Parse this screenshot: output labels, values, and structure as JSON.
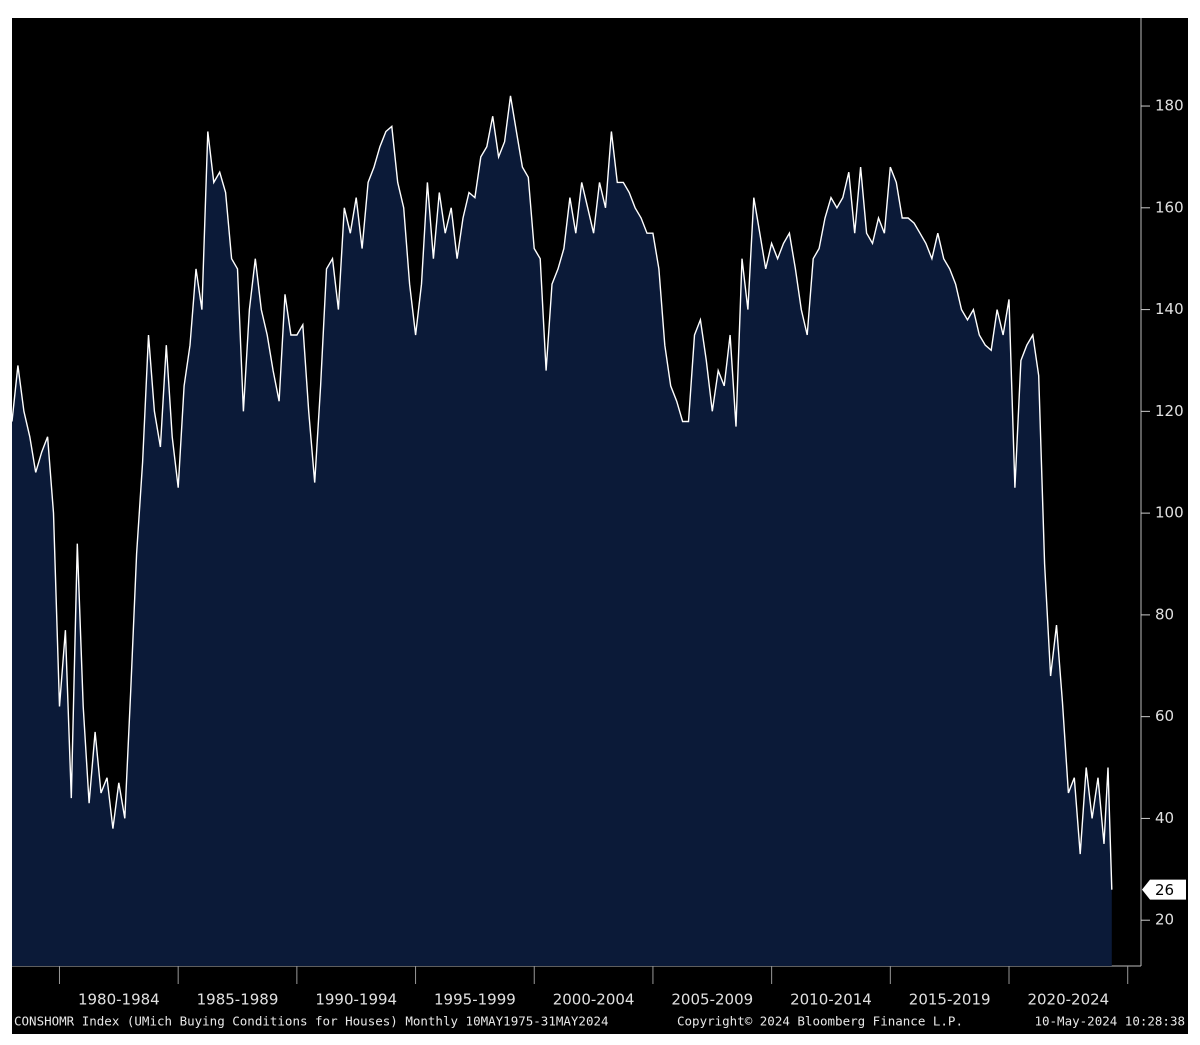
{
  "chart_data": {
    "type": "area",
    "x": [
      1978,
      1978.25,
      1978.5,
      1978.75,
      1979,
      1979.25,
      1979.5,
      1979.75,
      1980,
      1980.25,
      1980.5,
      1980.75,
      1981,
      1981.25,
      1981.5,
      1981.75,
      1982,
      1982.25,
      1982.5,
      1982.75,
      1983,
      1983.25,
      1983.5,
      1983.75,
      1984,
      1984.25,
      1984.5,
      1984.75,
      1985,
      1985.25,
      1985.5,
      1985.75,
      1986,
      1986.25,
      1986.5,
      1986.75,
      1987,
      1987.25,
      1987.5,
      1987.75,
      1988,
      1988.25,
      1988.5,
      1988.75,
      1989,
      1989.25,
      1989.5,
      1989.75,
      1990,
      1990.25,
      1990.5,
      1990.75,
      1991,
      1991.25,
      1991.5,
      1991.75,
      1992,
      1992.25,
      1992.5,
      1992.75,
      1993,
      1993.25,
      1993.5,
      1993.75,
      1994,
      1994.25,
      1994.5,
      1994.75,
      1995,
      1995.25,
      1995.5,
      1995.75,
      1996,
      1996.25,
      1996.5,
      1996.75,
      1997,
      1997.25,
      1997.5,
      1997.75,
      1998,
      1998.25,
      1998.5,
      1998.75,
      1999,
      1999.25,
      1999.5,
      1999.75,
      2000,
      2000.25,
      2000.5,
      2000.75,
      2001,
      2001.25,
      2001.5,
      2001.75,
      2002,
      2002.25,
      2002.5,
      2002.75,
      2003,
      2003.25,
      2003.5,
      2003.75,
      2004,
      2004.25,
      2004.5,
      2004.75,
      2005,
      2005.25,
      2005.5,
      2005.75,
      2006,
      2006.25,
      2006.5,
      2006.75,
      2007,
      2007.25,
      2007.5,
      2007.75,
      2008,
      2008.25,
      2008.5,
      2008.75,
      2009,
      2009.25,
      2009.5,
      2009.75,
      2010,
      2010.25,
      2010.5,
      2010.75,
      2011,
      2011.25,
      2011.5,
      2011.75,
      2012,
      2012.25,
      2012.5,
      2012.75,
      2013,
      2013.25,
      2013.5,
      2013.75,
      2014,
      2014.25,
      2014.5,
      2014.75,
      2015,
      2015.25,
      2015.5,
      2015.75,
      2016,
      2016.25,
      2016.5,
      2016.75,
      2017,
      2017.25,
      2017.5,
      2017.75,
      2018,
      2018.25,
      2018.5,
      2018.75,
      2019,
      2019.25,
      2019.5,
      2019.75,
      2020,
      2020.25,
      2020.5,
      2020.75,
      2021,
      2021.25,
      2021.5,
      2021.75,
      2022,
      2022.25,
      2022.5,
      2022.75,
      2023,
      2023.25,
      2023.5,
      2023.75,
      2024,
      2024.17,
      2024.33
    ],
    "series": [
      {
        "name": "CONSHOMR Index",
        "color": "#ffffff",
        "fill": "#0b1a38",
        "values": [
          118,
          129,
          120,
          115,
          108,
          112,
          115,
          100,
          62,
          77,
          44,
          94,
          62,
          43,
          57,
          45,
          48,
          38,
          47,
          40,
          65,
          92,
          110,
          135,
          120,
          113,
          133,
          115,
          105,
          125,
          133,
          148,
          140,
          175,
          165,
          167,
          163,
          150,
          148,
          120,
          140,
          150,
          140,
          135,
          128,
          122,
          143,
          135,
          135,
          137,
          120,
          106,
          125,
          148,
          150,
          140,
          160,
          155,
          162,
          152,
          165,
          168,
          172,
          175,
          176,
          165,
          160,
          145,
          135,
          145,
          165,
          150,
          163,
          155,
          160,
          150,
          158,
          163,
          162,
          170,
          172,
          178,
          170,
          173,
          182,
          175,
          168,
          166,
          152,
          150,
          128,
          145,
          148,
          152,
          162,
          155,
          165,
          160,
          155,
          165,
          160,
          175,
          165,
          165,
          163,
          160,
          158,
          155,
          155,
          148,
          133,
          125,
          122,
          118,
          118,
          135,
          138,
          130,
          120,
          128,
          125,
          135,
          117,
          150,
          140,
          162,
          155,
          148,
          153,
          150,
          153,
          155,
          148,
          140,
          135,
          150,
          152,
          158,
          162,
          160,
          162,
          167,
          155,
          168,
          155,
          153,
          158,
          155,
          168,
          165,
          158,
          158,
          157,
          155,
          153,
          150,
          155,
          150,
          148,
          145,
          140,
          138,
          140,
          135,
          133,
          132,
          140,
          135,
          142,
          105,
          130,
          133,
          135,
          127,
          90,
          68,
          78,
          63,
          45,
          48,
          33,
          50,
          40,
          48,
          35,
          50,
          26
        ]
      }
    ],
    "xlim": [
      1978,
      2025.56
    ],
    "xticks": [
      1980,
      1985,
      1990,
      1995,
      2000,
      2005,
      2010,
      2015,
      2020,
      2025
    ],
    "xtick_labels": [
      "1980-1984",
      "1985-1989",
      "1990-1994",
      "1995-1999",
      "2000-2004",
      "2005-2009",
      "2010-2014",
      "2015-2019",
      "2020-2024"
    ],
    "ylim": [
      11,
      197.3
    ],
    "yticks": [
      20,
      40,
      60,
      80,
      100,
      120,
      140,
      160,
      180
    ],
    "last_value_tag": true,
    "footer": {
      "left": "CONSHOMR Index (UMich Buying Conditions for Houses) Monthly 10MAY1975-31MAY2024",
      "center": "Copyright© 2024 Bloomberg Finance L.P.",
      "right": "10-May-2024 10:28:38"
    }
  }
}
